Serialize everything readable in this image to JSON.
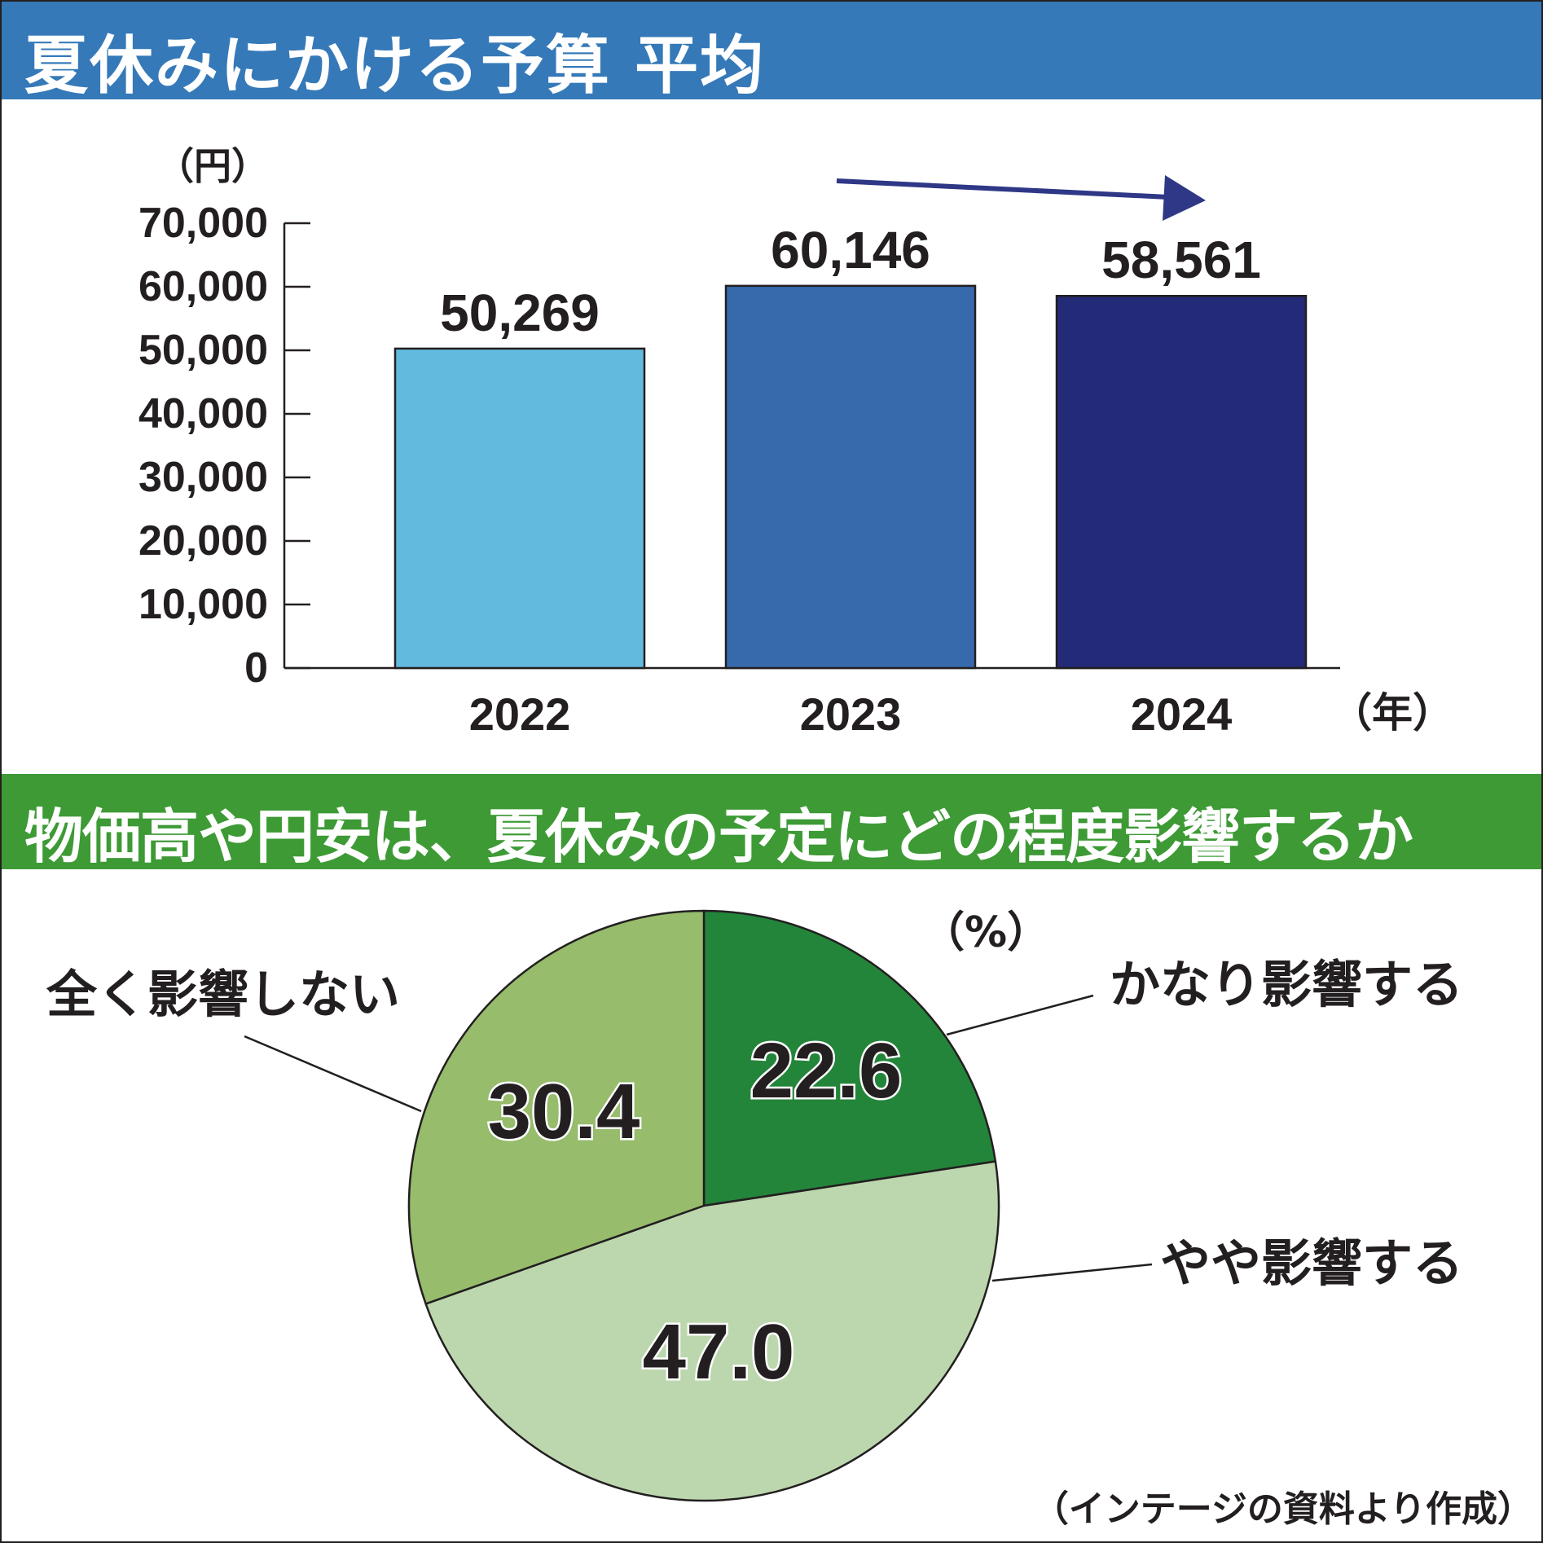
{
  "colors": {
    "banner_blue": "#3579b8",
    "banner_green": "#3d9a35",
    "bar_2022": "#62bbde",
    "bar_2023": "#366aac",
    "bar_2024": "#232a77",
    "arrow": "#2e3886",
    "pie_large": "#23853a",
    "pie_slight": "#bcd7ae",
    "pie_none": "#96bc6c",
    "ink": "#231f20"
  },
  "chart_data": [
    {
      "type": "bar",
      "title": "夏休みにかける予算 平均",
      "unit_label": "（円）",
      "xunit_label": "（年）",
      "categories": [
        "2022",
        "2023",
        "2024"
      ],
      "values": [
        50269,
        60146,
        58561
      ],
      "value_labels": [
        "50,269",
        "60,146",
        "58,561"
      ],
      "ylim": [
        0,
        70000
      ],
      "yticks": [
        0,
        10000,
        20000,
        30000,
        40000,
        50000,
        60000,
        70000
      ],
      "ytick_labels": [
        "0",
        "10,000",
        "20,000",
        "30,000",
        "40,000",
        "50,000",
        "60,000",
        "70,000"
      ],
      "bar_colors": [
        "#62bbde",
        "#366aac",
        "#232a77"
      ],
      "grid": false,
      "trend_arrow": "downward arrow above 2023–2024 bars"
    },
    {
      "type": "pie",
      "title": "物価高や円安は、夏休みの予定にどの程度影響するか",
      "unit_label": "（%）",
      "slices": [
        {
          "label": "かなり影響する",
          "value": 22.6,
          "value_label": "22.6",
          "color": "#23853a"
        },
        {
          "label": "やや影響する",
          "value": 47.0,
          "value_label": "47.0",
          "color": "#bcd7ae"
        },
        {
          "label": "全く影響しない",
          "value": 30.4,
          "value_label": "30.4",
          "color": "#96bc6c"
        }
      ],
      "start": "12 o'clock, clockwise"
    }
  ],
  "source": "（インテージの資料より作成）"
}
